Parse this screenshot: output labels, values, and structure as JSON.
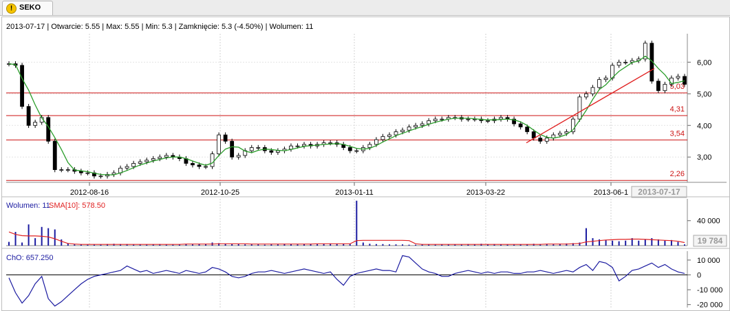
{
  "tab": {
    "symbol": "SEKO",
    "icon": "warning-icon"
  },
  "info": {
    "date": "2013-07-17",
    "open_label": "Otwarcie:",
    "open": "5.55",
    "max_label": "Max:",
    "max": "5.55",
    "min_label": "Min:",
    "min": "5.3",
    "close_label": "Zamknięcie:",
    "close": "5.3 (-4.50%)",
    "volume_label": "Wolumen:",
    "volume": "11"
  },
  "chart_data": [
    {
      "type": "candlestick",
      "title": "",
      "x_ticks": [
        "2012-08-16",
        "2012-10-25",
        "2013-01-11",
        "2013-03-22",
        "2013-06-1"
      ],
      "crosshair_date": "2013-07-17",
      "y_ticks": [
        "3,00",
        "4,00",
        "5,00",
        "6,00"
      ],
      "ylim": [
        2.2,
        6.9
      ],
      "grid": true,
      "moving_average_color": "#2a9d2a",
      "horizontal_levels": [
        {
          "label": "5,03",
          "value": 5.03
        },
        {
          "label": "4,31",
          "value": 4.31
        },
        {
          "label": "3,54",
          "value": 3.54
        },
        {
          "label": "2,26",
          "value": 2.26
        }
      ],
      "level_color": "#cc1111",
      "trendline": {
        "from": {
          "date": "2013-04-05",
          "value": 3.45
        },
        "to": {
          "date": "2013-07-10",
          "value": 5.8
        },
        "color": "#e02020"
      },
      "close_series": [
        5.95,
        5.9,
        4.6,
        4.0,
        4.1,
        4.25,
        3.5,
        2.6,
        2.6,
        2.6,
        2.55,
        2.5,
        2.5,
        2.4,
        2.4,
        2.45,
        2.5,
        2.65,
        2.7,
        2.8,
        2.85,
        2.9,
        2.95,
        3.0,
        3.05,
        3.0,
        2.95,
        2.8,
        2.75,
        2.7,
        2.7,
        3.1,
        3.7,
        3.5,
        3.0,
        3.05,
        3.2,
        3.3,
        3.3,
        3.2,
        3.15,
        3.2,
        3.25,
        3.35,
        3.35,
        3.4,
        3.35,
        3.4,
        3.45,
        3.45,
        3.4,
        3.3,
        3.2,
        3.2,
        3.3,
        3.4,
        3.55,
        3.65,
        3.7,
        3.8,
        3.85,
        3.95,
        4.0,
        4.05,
        4.15,
        4.2,
        4.2,
        4.25,
        4.25,
        4.2,
        4.2,
        4.2,
        4.15,
        4.15,
        4.2,
        4.25,
        4.2,
        4.05,
        3.95,
        3.8,
        3.6,
        3.5,
        3.6,
        3.7,
        3.75,
        3.8,
        4.2,
        4.9,
        5.0,
        5.2,
        5.45,
        5.5,
        5.9,
        6.0,
        6.0,
        6.05,
        6.1,
        6.6,
        5.4,
        5.1,
        5.3,
        5.5,
        5.55,
        5.3
      ]
    },
    {
      "type": "bar",
      "title": "",
      "legend": [
        {
          "name": "Wolumen:",
          "value": "11",
          "color": "#1a1aa0"
        },
        {
          "name": "SMA[10]:",
          "value": "578.50",
          "color": "#e02020"
        }
      ],
      "y_ticks": [
        "40 000"
      ],
      "current_value_box": "19 784",
      "ylim": [
        0,
        75000
      ],
      "values": [
        6000,
        22000,
        5000,
        34000,
        12000,
        30000,
        28000,
        26000,
        10000,
        4000,
        2000,
        2000,
        1500,
        1500,
        1500,
        2500,
        3000,
        2500,
        2500,
        1500,
        2000,
        1500,
        2000,
        2500,
        1500,
        1500,
        2000,
        2500,
        2000,
        3000,
        2500,
        5000,
        4000,
        3000,
        2500,
        2500,
        2000,
        2000,
        2000,
        1500,
        2000,
        2000,
        3000,
        2500,
        2000,
        2500,
        3000,
        2500,
        3000,
        3500,
        3000,
        3000,
        2500,
        72000,
        5000,
        3000,
        2500,
        2500,
        2000,
        2000,
        2000,
        1500,
        1500,
        2000,
        2000,
        1500,
        2000,
        2000,
        2000,
        1500,
        2500,
        2000,
        3000,
        2000,
        2500,
        2000,
        1500,
        1500,
        2000,
        2000,
        3000,
        2500,
        2500,
        2000,
        3000,
        3500,
        4000,
        5000,
        28000,
        12000,
        10000,
        9000,
        8000,
        7000,
        8000,
        12000,
        8000,
        10000,
        12000,
        10000,
        8000,
        9000,
        6000,
        2000
      ],
      "sma_values": [
        22000,
        18000,
        16000,
        15500,
        15500,
        15000,
        14000,
        11000,
        7000,
        3500,
        2500,
        2000,
        2000,
        2000,
        2000,
        2000,
        2000,
        2000,
        2000,
        2000,
        2000,
        2000,
        2000,
        2000,
        2000,
        2000,
        2000,
        2500,
        2500,
        2500,
        2500,
        2500,
        3000,
        3000,
        3000,
        3000,
        3000,
        2500,
        2500,
        2500,
        2500,
        2500,
        2500,
        2500,
        2500,
        2500,
        2500,
        3000,
        3000,
        3000,
        3000,
        3000,
        3000,
        8000,
        8500,
        8500,
        8500,
        8500,
        8500,
        8500,
        8500,
        8000,
        3000,
        2000,
        2000,
        2000,
        2000,
        2000,
        2000,
        2000,
        2000,
        2000,
        2000,
        2000,
        2000,
        2000,
        2000,
        2000,
        2000,
        2000,
        2000,
        2000,
        2500,
        2500,
        2500,
        2500,
        3000,
        3500,
        6000,
        7000,
        8000,
        9000,
        9500,
        10000,
        10000,
        10500,
        10500,
        10000,
        9500,
        9000,
        8500,
        8000,
        7000,
        5000
      ]
    },
    {
      "type": "line",
      "title": "",
      "legend": [
        {
          "name": "ChO:",
          "value": "657.250",
          "color": "#1a1aa0"
        }
      ],
      "y_ticks": [
        "10 000",
        "0",
        "-10 000",
        "-20 000"
      ],
      "ylim": [
        -22000,
        16000
      ],
      "zero_line": true,
      "values": [
        -2000,
        -12000,
        -19000,
        -14000,
        -6000,
        -1000,
        -16000,
        -21000,
        -18000,
        -14000,
        -10000,
        -6000,
        -3000,
        -1000,
        0,
        1000,
        2000,
        3000,
        6000,
        4000,
        2000,
        3000,
        1000,
        2000,
        3000,
        2000,
        1000,
        3000,
        2000,
        1000,
        2000,
        5000,
        4000,
        2000,
        -1000,
        -2000,
        -1000,
        1000,
        2000,
        2000,
        3000,
        2000,
        1000,
        2000,
        3000,
        4000,
        3000,
        2000,
        1000,
        2000,
        -3000,
        -7000,
        -1000,
        1000,
        2000,
        3000,
        4000,
        3000,
        3000,
        2000,
        13000,
        12000,
        8000,
        4000,
        2000,
        1000,
        -1000,
        -1000,
        1000,
        2000,
        3000,
        2000,
        1000,
        2000,
        1000,
        2000,
        2000,
        1000,
        1000,
        2000,
        2000,
        3000,
        2000,
        1000,
        2000,
        3000,
        2000,
        5000,
        7000,
        3000,
        9000,
        8000,
        5000,
        -4000,
        -1000,
        3000,
        4000,
        6000,
        8000,
        5000,
        7000,
        4000,
        2000,
        1000
      ]
    }
  ]
}
